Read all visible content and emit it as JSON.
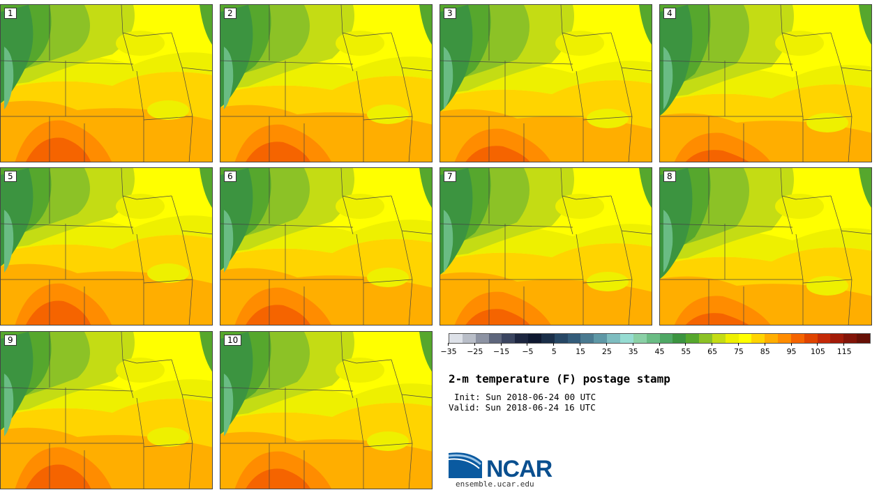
{
  "members": [
    "1",
    "2",
    "3",
    "4",
    "5",
    "6",
    "7",
    "8",
    "9",
    "10"
  ],
  "colorbar": {
    "colors": [
      "#dde1e8",
      "#b9bec8",
      "#8d93a3",
      "#5e667c",
      "#3b4560",
      "#1d2640",
      "#0e1830",
      "#1a2e48",
      "#274765",
      "#335c7a",
      "#4a7a90",
      "#5e98a6",
      "#7ebdc0",
      "#96dcd2",
      "#8ad0a6",
      "#6abc84",
      "#4fa865",
      "#3c9440",
      "#56a72d",
      "#8cc226",
      "#c4dc14",
      "#eef000",
      "#ffff00",
      "#ffd400",
      "#ffae00",
      "#ff8c00",
      "#f56400",
      "#e04400",
      "#c42a08",
      "#a21b08",
      "#821408",
      "#671006"
    ],
    "tick_labels": [
      "−35",
      "−25",
      "−15",
      "−5",
      "5",
      "15",
      "25",
      "35",
      "45",
      "55",
      "65",
      "75",
      "85",
      "95",
      "105",
      "115"
    ]
  },
  "title": "2-m temperature (F) postage stamp",
  "init_text": "Init: Sun 2018-06-24 00 UTC",
  "valid_text": "Valid: Sun 2018-06-24 16 UTC",
  "logo_text": "NCAR",
  "site_text": "ensemble.ucar.edu"
}
